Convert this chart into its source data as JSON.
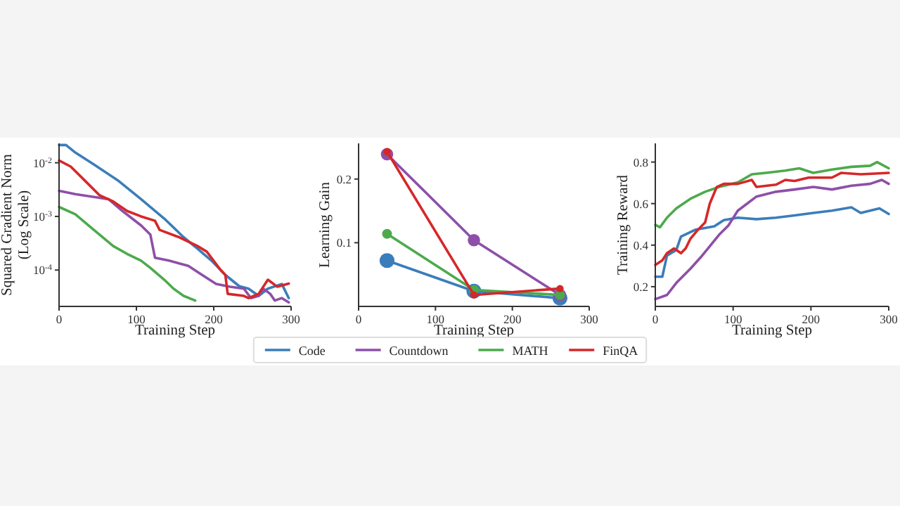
{
  "chart_data": [
    {
      "type": "line",
      "xlabel": "Training Step",
      "ylabel": "Squared Gradient Norm\n(Log Scale)",
      "log": "y",
      "xlim": [
        0,
        300
      ],
      "ylim": [
        2.1e-05,
        0.023
      ],
      "xticks": [
        0,
        100,
        200,
        300
      ],
      "yticks": [
        {
          "value": 0.0001,
          "label": "10$^{-4}$"
        },
        {
          "value": 0.001,
          "label": "10$^{-3}$"
        },
        {
          "value": 0.01,
          "label": "10$^{-2}$"
        }
      ],
      "series": [
        {
          "color": "#3b7dba",
          "x": [
            0,
            9,
            21,
            45,
            76,
            106,
            136,
            161,
            179,
            197,
            215,
            233,
            245,
            258,
            270,
            288,
            297
          ],
          "values": [
            0.0214,
            0.0214,
            0.0155,
            0.0093,
            0.0047,
            0.0021,
            0.00091,
            0.00041,
            0.00025,
            0.00015,
            8.1e-05,
            5e-05,
            4.5e-05,
            3.3e-05,
            4.5e-05,
            5.5e-05,
            3e-05
          ]
        },
        {
          "color": "#8e4fa8",
          "x": [
            0,
            21,
            45,
            64,
            82,
            106,
            118,
            124,
            142,
            167,
            185,
            203,
            221,
            239,
            248,
            258,
            264,
            273,
            279,
            288,
            297
          ],
          "values": [
            0.003,
            0.0026,
            0.0023,
            0.0021,
            0.00126,
            0.00068,
            0.00046,
            0.00017,
            0.00015,
            0.00012,
            8.1e-05,
            5.5e-05,
            4.9e-05,
            4.5e-05,
            3e-05,
            3.3e-05,
            4.5e-05,
            3.6e-05,
            2.7e-05,
            3e-05,
            2.5e-05
          ]
        },
        {
          "color": "#4caa4c",
          "x": [
            0,
            21,
            45,
            70,
            88,
            106,
            118,
            136,
            148,
            161,
            176
          ],
          "values": [
            0.0015,
            0.0011,
            0.00056,
            0.00028,
            0.0002,
            0.00015,
            0.00011,
            6.6e-05,
            4.5e-05,
            3.3e-05,
            2.7e-05
          ]
        },
        {
          "color": "#d62728",
          "x": [
            0,
            15,
            33,
            52,
            70,
            88,
            106,
            124,
            130,
            155,
            179,
            191,
            209,
            215,
            218,
            239,
            245,
            258,
            270,
            282,
            297
          ],
          "values": [
            0.011,
            0.0085,
            0.0047,
            0.0025,
            0.0019,
            0.00126,
            0.001,
            0.00083,
            0.00056,
            0.00041,
            0.00028,
            0.00022,
            0.0001,
            8.1e-05,
            3.6e-05,
            3.3e-05,
            3e-05,
            3.6e-05,
            6.6e-05,
            4.9e-05,
            5.6e-05
          ]
        }
      ]
    },
    {
      "type": "line",
      "xlabel": "Training Step",
      "ylabel": "Learning Gain",
      "xlim": [
        0,
        300
      ],
      "ylim": [
        0,
        0.256
      ],
      "xticks": [
        0,
        100,
        200,
        300
      ],
      "yticks": [
        0.1,
        0.2
      ],
      "marker": "circle",
      "legend": "bottom",
      "series": [
        {
          "name": "Code",
          "color": "#3b7dba",
          "x": [
            37,
            150,
            262
          ],
          "values": [
            0.072,
            0.024,
            0.013
          ]
        },
        {
          "name": "Countdown",
          "color": "#8e4fa8",
          "x": [
            37,
            150,
            262
          ],
          "values": [
            0.239,
            0.104,
            0.018
          ]
        },
        {
          "name": "MATH",
          "color": "#4caa4c",
          "x": [
            37,
            150,
            262
          ],
          "values": [
            0.114,
            0.026,
            0.018
          ]
        },
        {
          "name": "FinQA",
          "color": "#d62728",
          "x": [
            37,
            150,
            262
          ],
          "values": [
            0.243,
            0.018,
            0.028
          ]
        }
      ]
    },
    {
      "type": "line",
      "xlabel": "Training Step",
      "ylabel": "Training Reward",
      "xlim": [
        0,
        300
      ],
      "ylim": [
        0.105,
        0.89
      ],
      "xticks": [
        0,
        100,
        200,
        300
      ],
      "yticks": [
        0.2,
        0.4,
        0.6,
        0.8
      ],
      "series": [
        {
          "color": "#3b7dba",
          "x": [
            0,
            9,
            15,
            27,
            33,
            52,
            76,
            88,
            106,
            130,
            155,
            179,
            203,
            227,
            252,
            264,
            288,
            300
          ],
          "values": [
            0.248,
            0.248,
            0.35,
            0.377,
            0.441,
            0.475,
            0.491,
            0.52,
            0.532,
            0.525,
            0.532,
            0.543,
            0.555,
            0.566,
            0.582,
            0.555,
            0.577,
            0.55
          ]
        },
        {
          "color": "#8e4fa8",
          "x": [
            0,
            15,
            27,
            45,
            58,
            70,
            82,
            94,
            106,
            118,
            130,
            155,
            179,
            203,
            227,
            252,
            276,
            291,
            300
          ],
          "values": [
            0.14,
            0.16,
            0.218,
            0.286,
            0.34,
            0.395,
            0.45,
            0.495,
            0.566,
            0.6,
            0.634,
            0.657,
            0.668,
            0.68,
            0.668,
            0.686,
            0.695,
            0.714,
            0.695
          ]
        },
        {
          "color": "#4caa4c",
          "x": [
            0,
            6,
            15,
            27,
            45,
            64,
            82,
            106,
            124,
            142,
            167,
            185,
            203,
            227,
            252,
            276,
            285,
            300
          ],
          "values": [
            0.498,
            0.486,
            0.532,
            0.577,
            0.623,
            0.657,
            0.68,
            0.702,
            0.741,
            0.748,
            0.759,
            0.77,
            0.748,
            0.764,
            0.777,
            0.782,
            0.8,
            0.77
          ]
        },
        {
          "color": "#d62728",
          "x": [
            0,
            9,
            15,
            24,
            33,
            39,
            45,
            55,
            64,
            70,
            79,
            88,
            106,
            124,
            130,
            155,
            167,
            179,
            197,
            227,
            239,
            264,
            300
          ],
          "values": [
            0.305,
            0.327,
            0.361,
            0.384,
            0.361,
            0.384,
            0.43,
            0.475,
            0.509,
            0.6,
            0.68,
            0.695,
            0.695,
            0.714,
            0.68,
            0.691,
            0.714,
            0.709,
            0.725,
            0.725,
            0.748,
            0.741,
            0.748
          ]
        }
      ]
    }
  ]
}
